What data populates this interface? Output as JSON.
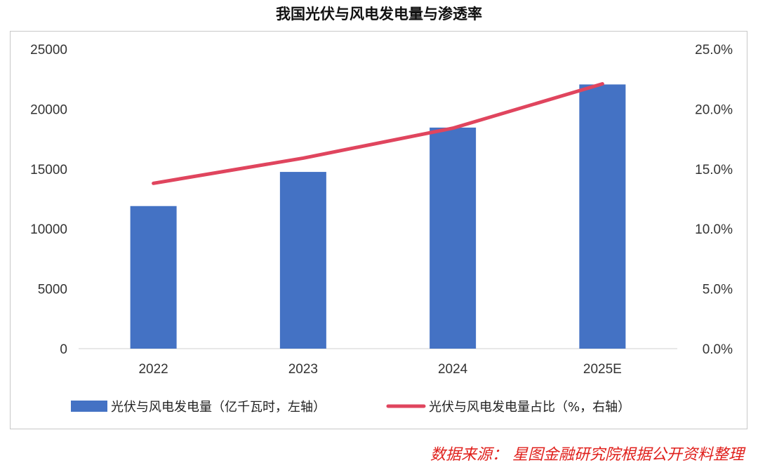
{
  "chart_data": {
    "type": "bar+line",
    "title": "我国光伏与风电发电量与渗透率",
    "categories": [
      "2022",
      "2023",
      "2024",
      "2025E"
    ],
    "series": [
      {
        "name": "光伏与风电发电量（亿千瓦时，左轴）",
        "type": "bar",
        "axis": "left",
        "values": [
          11900,
          14750,
          18450,
          22050
        ],
        "color": "#4472c4"
      },
      {
        "name": "光伏与风电发电量占比（%，右轴）",
        "type": "line",
        "axis": "right",
        "values": [
          13.8,
          15.9,
          18.4,
          22.1
        ],
        "color": "#e0455e"
      }
    ],
    "y_left": {
      "min": 0,
      "max": 25000,
      "ticks": [
        "0",
        "5000",
        "10000",
        "15000",
        "20000",
        "25000"
      ]
    },
    "y_right": {
      "min": 0,
      "max": 25,
      "ticks": [
        "0.0%",
        "5.0%",
        "10.0%",
        "15.0%",
        "20.0%",
        "25.0%"
      ]
    },
    "grid": false,
    "legend_position": "bottom"
  },
  "source": "数据来源：  星图金融研究院根据公开资料整理"
}
